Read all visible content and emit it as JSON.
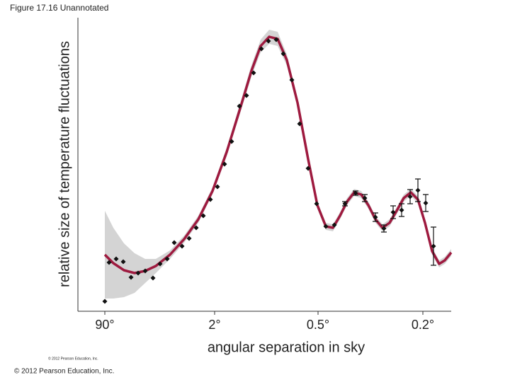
{
  "header": {
    "title": "Figure 17.16 Unannotated"
  },
  "chart_data": {
    "type": "scatter",
    "ylabel": "relative size of temperature fluctuations",
    "xlabel": "angular separation in sky",
    "xlim": [
      0,
      527
    ],
    "ylim": [
      0,
      415
    ],
    "xticks": [
      {
        "value": 38,
        "label": "90°"
      },
      {
        "value": 193,
        "label": "2°"
      },
      {
        "value": 339,
        "label": "0.5°"
      },
      {
        "value": 487,
        "label": "0.2°"
      }
    ],
    "points": {
      "color": "#111111",
      "x": [
        38,
        44,
        54,
        64,
        75,
        85,
        95,
        106,
        116,
        126,
        136,
        147,
        157,
        167,
        177,
        187,
        197,
        207,
        217,
        228,
        238,
        248,
        259,
        269,
        280,
        290,
        302,
        313,
        325,
        337,
        350,
        362,
        377,
        392,
        405,
        420,
        432,
        445,
        457,
        469,
        480,
        491,
        502
      ],
      "values": [
        14,
        69,
        74,
        70,
        48,
        54,
        57,
        47,
        67,
        74,
        97,
        92,
        103,
        118,
        135,
        158,
        176,
        208,
        240,
        290,
        305,
        337,
        371,
        382,
        384,
        364,
        327,
        265,
        202,
        152,
        120,
        122,
        152,
        167,
        160,
        133,
        117,
        140,
        143,
        162,
        171,
        153,
        92
      ],
      "errors": [
        null,
        null,
        null,
        null,
        null,
        null,
        null,
        null,
        null,
        null,
        null,
        null,
        null,
        null,
        null,
        null,
        null,
        null,
        null,
        null,
        null,
        null,
        null,
        null,
        null,
        null,
        null,
        null,
        null,
        null,
        null,
        null,
        3,
        3,
        5,
        6,
        5,
        9,
        9,
        10,
        16,
        12,
        27
      ]
    },
    "fit": {
      "color": "#9e1a3f",
      "band_color": "#d4d4d4",
      "x": [
        38,
        50,
        65,
        80,
        95,
        110,
        130,
        150,
        170,
        190,
        210,
        230,
        245,
        258,
        270,
        282,
        295,
        310,
        325,
        338,
        350,
        360,
        370,
        380,
        390,
        400,
        410,
        420,
        430,
        440,
        450,
        460,
        470,
        480,
        490,
        500,
        510,
        518,
        527
      ],
      "values": [
        80,
        68,
        58,
        54,
        57,
        64,
        80,
        102,
        130,
        170,
        225,
        290,
        340,
        375,
        388,
        385,
        355,
        295,
        215,
        150,
        120,
        118,
        135,
        155,
        168,
        165,
        150,
        130,
        118,
        125,
        142,
        160,
        168,
        158,
        125,
        85,
        67,
        72,
        83
      ],
      "uncertainty": [
        62,
        50,
        38,
        28,
        17,
        10,
        6,
        5,
        5,
        5,
        6,
        7,
        8,
        9,
        10,
        10,
        8,
        6,
        5,
        5,
        5,
        5,
        5,
        5,
        5,
        5,
        5,
        5,
        5,
        5,
        5,
        5,
        5,
        5,
        5,
        5,
        5,
        5,
        5
      ]
    }
  },
  "footer": {
    "small_credit": "© 2012 Pearson Education, Inc.",
    "credit": "© 2012 Pearson Education, Inc."
  }
}
